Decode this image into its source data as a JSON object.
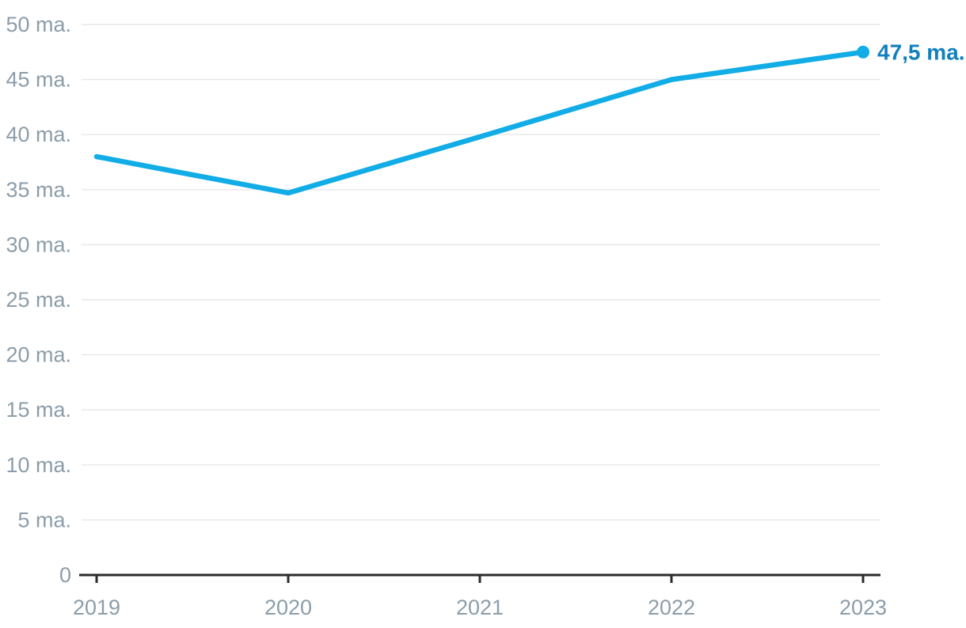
{
  "chart_data": {
    "type": "line",
    "title": "",
    "xlabel": "",
    "ylabel": "",
    "categories": [
      "2019",
      "2020",
      "2021",
      "2022",
      "2023"
    ],
    "series": [
      {
        "name": "main-series",
        "values": [
          38,
          34.7,
          39.8,
          45,
          47.5
        ]
      }
    ],
    "end_label": "47,5 ma.",
    "ylim": [
      0,
      50
    ],
    "ytick_values": [
      0,
      5,
      10,
      15,
      20,
      25,
      30,
      35,
      40,
      45,
      50
    ],
    "ytick_labels": [
      "0",
      "5 ma.",
      "10 ma.",
      "15 ma.",
      "20 ma.",
      "25 ma.",
      "30 ma.",
      "35 ma.",
      "40 ma.",
      "45 ma.",
      "50 ma."
    ],
    "grid": true,
    "legend_position": "none",
    "colors": {
      "line": "#12ACE6",
      "end_point": "#12ACE6",
      "end_label": "#1180BC",
      "tick_label": "#8C9DA9",
      "gridline": "#E7E7E7",
      "axis": "#2B2B2B",
      "background": "#FFFFFF"
    }
  }
}
